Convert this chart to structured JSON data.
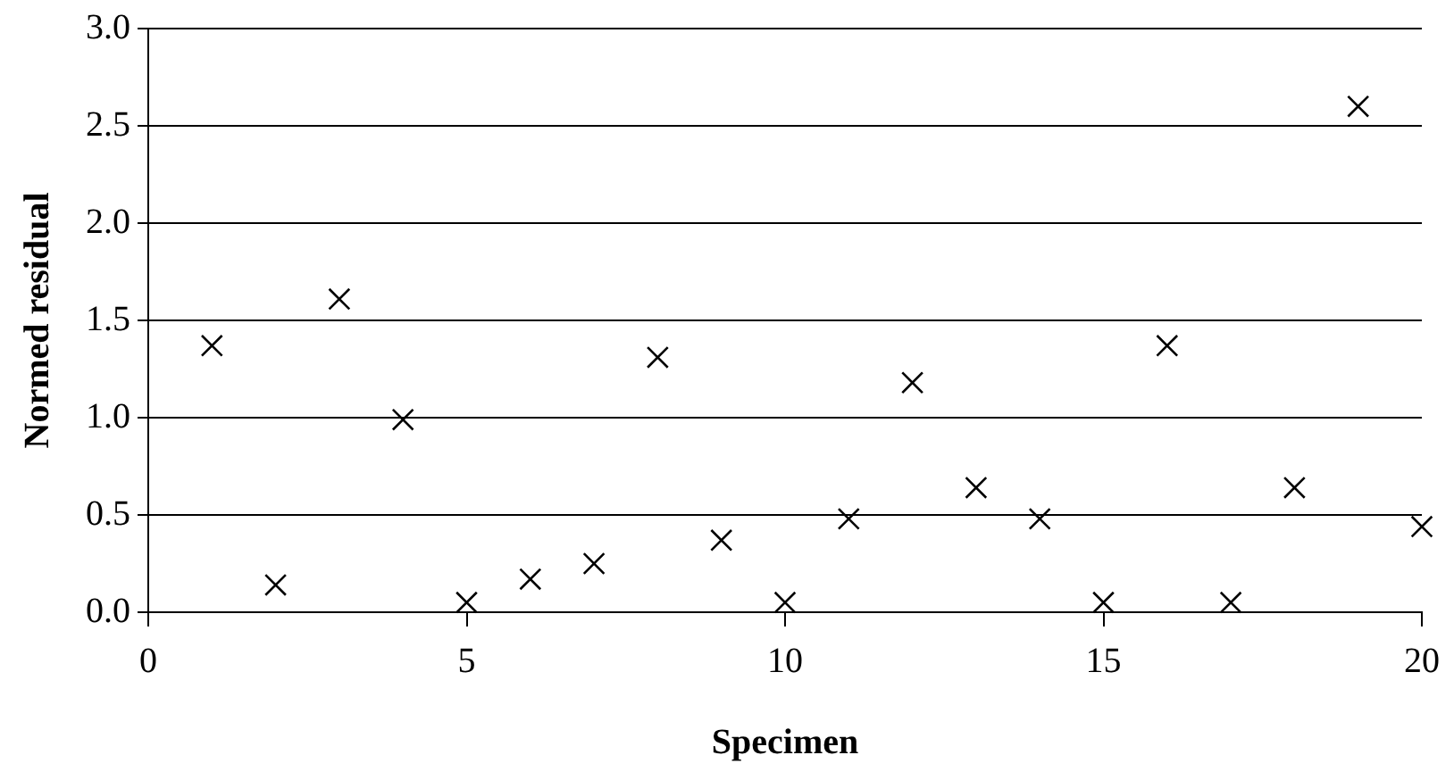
{
  "chart_data": {
    "type": "scatter",
    "xlabel": "Specimen",
    "ylabel": "Normed residual",
    "x": [
      1,
      2,
      3,
      4,
      5,
      6,
      7,
      8,
      9,
      10,
      11,
      12,
      13,
      14,
      15,
      16,
      17,
      18,
      19,
      20
    ],
    "series": [
      {
        "color": "#000000",
        "values": [
          1.37,
          0.14,
          1.61,
          0.99,
          0.05,
          0.17,
          0.25,
          1.31,
          0.37,
          0.05,
          0.48,
          1.18,
          0.64,
          0.48,
          0.05,
          1.37,
          0.05,
          0.64,
          2.6,
          0.44
        ]
      }
    ],
    "xlim": [
      0,
      20
    ],
    "xticks": [
      0,
      5,
      10,
      15,
      20
    ],
    "ylim": [
      0,
      3
    ],
    "yticks": [
      {
        "value": 0,
        "label": "0.0"
      },
      {
        "value": 0.5,
        "label": "0.5"
      },
      {
        "value": 1,
        "label": "1.0"
      },
      {
        "value": 1.5,
        "label": "1.5"
      },
      {
        "value": 2,
        "label": "2.0"
      },
      {
        "value": 2.5,
        "label": "2.5"
      },
      {
        "value": 3,
        "label": "3.0"
      }
    ],
    "grid": "y",
    "legend": false,
    "marker": "cross"
  }
}
